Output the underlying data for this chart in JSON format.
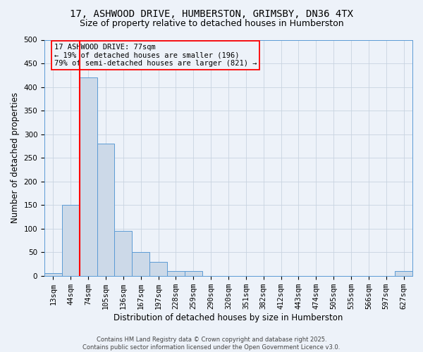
{
  "title_line1": "17, ASHWOOD DRIVE, HUMBERSTON, GRIMSBY, DN36 4TX",
  "title_line2": "Size of property relative to detached houses in Humberston",
  "xlabel": "Distribution of detached houses by size in Humberston",
  "ylabel": "Number of detached properties",
  "bin_labels": [
    "13sqm",
    "44sqm",
    "74sqm",
    "105sqm",
    "136sqm",
    "167sqm",
    "197sqm",
    "228sqm",
    "259sqm",
    "290sqm",
    "320sqm",
    "351sqm",
    "382sqm",
    "412sqm",
    "443sqm",
    "474sqm",
    "505sqm",
    "535sqm",
    "566sqm",
    "597sqm",
    "627sqm"
  ],
  "bar_heights": [
    5,
    150,
    420,
    280,
    95,
    50,
    30,
    10,
    10,
    0,
    0,
    0,
    0,
    0,
    0,
    0,
    0,
    0,
    0,
    0,
    10
  ],
  "bar_color": "#ccd9e8",
  "bar_edge_color": "#5b9bd5",
  "property_line_bin_index": 2,
  "property_line_color": "red",
  "annotation_text": "17 ASHWOOD DRIVE: 77sqm\n← 19% of detached houses are smaller (196)\n79% of semi-detached houses are larger (821) →",
  "annotation_box_color": "red",
  "annotation_text_color": "black",
  "ylim": [
    0,
    500
  ],
  "yticks": [
    0,
    50,
    100,
    150,
    200,
    250,
    300,
    350,
    400,
    450,
    500
  ],
  "grid_color": "#c8d4e0",
  "background_color": "#edf2f9",
  "footer_text": "Contains HM Land Registry data © Crown copyright and database right 2025.\nContains public sector information licensed under the Open Government Licence v3.0.",
  "title_fontsize": 10,
  "subtitle_fontsize": 9,
  "axis_label_fontsize": 8.5,
  "tick_fontsize": 7.5,
  "annotation_fontsize": 7.5,
  "footer_fontsize": 6.0
}
